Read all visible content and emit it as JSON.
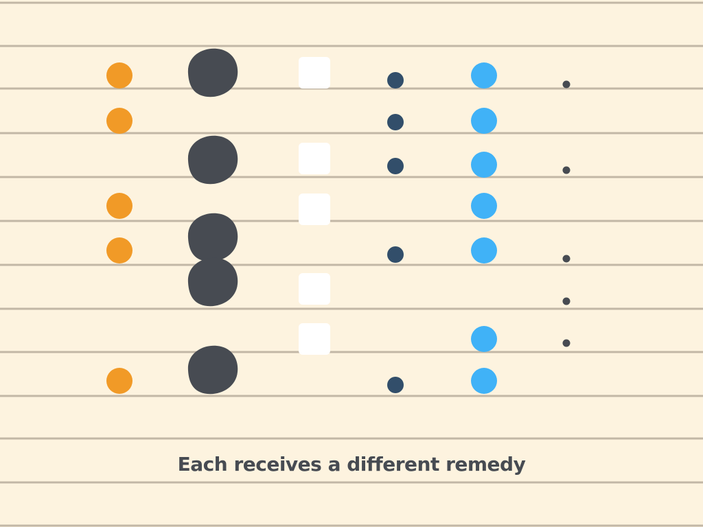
{
  "caption": "Each receives a different remedy",
  "colors": {
    "background": "#fdf3df",
    "rule_line": "#c2b7a6",
    "caption": "#474b52"
  },
  "columns": [
    {
      "name": "orange-dot",
      "shape": "circle-dot",
      "color": "#f19a27",
      "present": [
        true,
        true,
        false,
        true,
        true,
        false,
        false,
        true
      ]
    },
    {
      "name": "charcoal-blob",
      "shape": "blob",
      "color": "#474b52",
      "present": [
        true,
        false,
        true,
        false,
        true,
        true,
        false,
        true
      ]
    },
    {
      "name": "white-square",
      "shape": "rounded-square",
      "color": "#ffffff",
      "present": [
        true,
        false,
        true,
        true,
        false,
        true,
        true,
        false
      ]
    },
    {
      "name": "navy-dot",
      "shape": "small-dot",
      "color": "#324e6a",
      "present": [
        true,
        true,
        true,
        false,
        true,
        false,
        false,
        true
      ]
    },
    {
      "name": "blue-dot",
      "shape": "circle-dot",
      "color": "#40b2f7",
      "present": [
        true,
        true,
        true,
        true,
        true,
        false,
        true,
        true
      ]
    },
    {
      "name": "tiny-dot",
      "shape": "tiny-dot",
      "color": "#474b52",
      "present": [
        true,
        false,
        true,
        false,
        true,
        true,
        true,
        false
      ]
    }
  ]
}
